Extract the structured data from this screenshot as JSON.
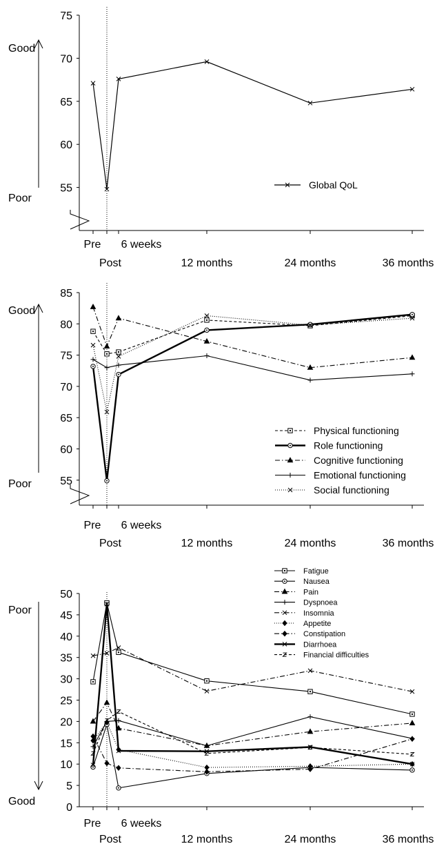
{
  "chart_data": [
    {
      "type": "line",
      "x_categories": [
        "Pre",
        "Post",
        "6 weeks",
        "12 months",
        "24 months",
        "36 months"
      ],
      "direction_labels": {
        "top": "Good",
        "bottom": "Poor"
      },
      "y_ticks": [
        "75",
        "70",
        "65",
        "60",
        "55"
      ],
      "ylim": [
        50,
        75
      ],
      "axis_break": true,
      "legend_position": "right",
      "series": [
        {
          "name": "Global QoL",
          "marker": "x",
          "dash": "solid",
          "width": 1.2,
          "values": [
            67.1,
            54.8,
            67.6,
            69.6,
            64.8,
            66.4
          ]
        }
      ]
    },
    {
      "type": "line",
      "x_categories": [
        "Pre",
        "Post",
        "6 weeks",
        "12 months",
        "24 months",
        "36 months"
      ],
      "direction_labels": {
        "top": "Good",
        "bottom": "Poor"
      },
      "y_ticks": [
        "85",
        "80",
        "75",
        "70",
        "65",
        "60",
        "55"
      ],
      "ylim": [
        51,
        85
      ],
      "axis_break": true,
      "legend_position": "bottom-right",
      "series": [
        {
          "name": "Physical functioning",
          "marker": "square",
          "dash": "dashed",
          "width": 1.1,
          "values": [
            78.8,
            75.2,
            75.5,
            80.6,
            79.7,
            81.3
          ]
        },
        {
          "name": "Role functioning",
          "marker": "circle",
          "dash": "solid",
          "width": 2.4,
          "values": [
            73.2,
            54.9,
            71.9,
            79.0,
            79.9,
            81.5
          ]
        },
        {
          "name": "Cognitive functioning",
          "marker": "triangle",
          "dash": "dashdot",
          "width": 1.1,
          "values": [
            82.7,
            76.4,
            80.9,
            77.2,
            73.0,
            74.6
          ]
        },
        {
          "name": "Emotional functioning",
          "marker": "plus",
          "dash": "solid",
          "width": 1.1,
          "values": [
            74.3,
            73.0,
            73.4,
            74.9,
            71.0,
            72.0
          ]
        },
        {
          "name": "Social functioning",
          "marker": "x",
          "dash": "dotted",
          "width": 1.1,
          "values": [
            76.6,
            65.9,
            74.8,
            81.3,
            79.8,
            80.9
          ]
        }
      ]
    },
    {
      "type": "line",
      "x_categories": [
        "Pre",
        "Post",
        "6 weeks",
        "12 months",
        "24 months",
        "36 months"
      ],
      "direction_labels": {
        "top": "Poor",
        "bottom": "Good"
      },
      "y_ticks": [
        "50",
        "45",
        "40",
        "35",
        "30",
        "25",
        "20",
        "15",
        "10",
        "5",
        "0"
      ],
      "ylim": [
        0,
        50
      ],
      "axis_break": false,
      "legend_position": "top-right",
      "series": [
        {
          "name": "Fatigue",
          "marker": "square",
          "dash": "solid",
          "width": 1.1,
          "values": [
            29.3,
            47.8,
            36.2,
            29.5,
            27.0,
            21.7
          ]
        },
        {
          "name": "Nausea",
          "marker": "circle",
          "dash": "solid",
          "width": 1.1,
          "values": [
            9.3,
            19.3,
            4.4,
            7.8,
            9.2,
            8.6
          ]
        },
        {
          "name": "Pain",
          "marker": "triangle",
          "dash": "dashdot",
          "width": 1.1,
          "values": [
            20.0,
            24.4,
            18.4,
            14.3,
            17.6,
            19.6
          ]
        },
        {
          "name": "Dyspnoea",
          "marker": "plus",
          "dash": "solid",
          "width": 1.1,
          "values": [
            14.1,
            20.0,
            20.2,
            14.3,
            21.1,
            16.0
          ]
        },
        {
          "name": "Insomnia",
          "marker": "x",
          "dash": "dashdot",
          "width": 1.1,
          "values": [
            35.4,
            36.0,
            37.3,
            27.1,
            31.9,
            27.0
          ]
        },
        {
          "name": "Appetite",
          "marker": "diamond",
          "dash": "dotted",
          "width": 1.1,
          "values": [
            15.5,
            19.8,
            13.4,
            9.2,
            9.5,
            10.0
          ]
        },
        {
          "name": "Constipation",
          "marker": "diamond",
          "dash": "dashdot",
          "width": 1.1,
          "values": [
            16.5,
            10.2,
            9.1,
            8.2,
            8.8,
            15.9
          ]
        },
        {
          "name": "Diarrhoea",
          "marker": "x",
          "dash": "solid",
          "width": 2.4,
          "values": [
            9.8,
            47.5,
            13.1,
            13.0,
            14.0,
            10.0
          ]
        },
        {
          "name": "Financial difficulties",
          "marker": "z",
          "dash": "dashed",
          "width": 1.1,
          "values": [
            12.5,
            20.2,
            22.3,
            12.5,
            13.9,
            12.3
          ]
        }
      ]
    }
  ]
}
